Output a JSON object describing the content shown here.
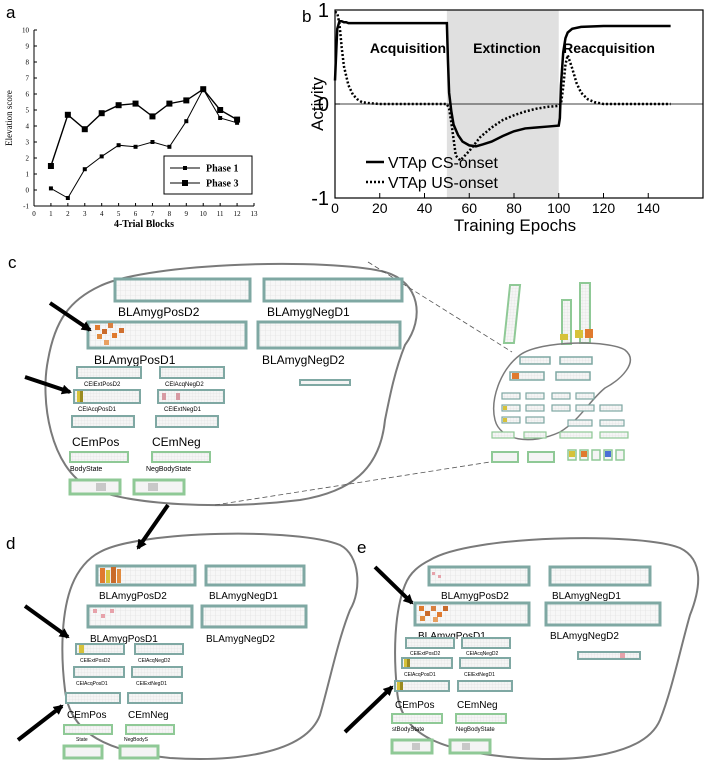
{
  "panels": {
    "a": {
      "letter": "a",
      "chart_data": {
        "type": "line",
        "title": "",
        "xlabel": "4-Trial Blocks",
        "ylabel": "Elevation score",
        "xlim": [
          0,
          13
        ],
        "ylim": [
          -1,
          10
        ],
        "x_ticks": [
          0,
          1,
          2,
          3,
          4,
          5,
          6,
          7,
          8,
          9,
          10,
          11,
          12,
          13
        ],
        "y_ticks": [
          -1,
          0,
          1,
          2,
          3,
          4,
          5,
          6,
          7,
          8,
          9,
          10
        ],
        "grid": false,
        "legend_position": "bottom-right",
        "x": [
          1,
          2,
          3,
          4,
          5,
          6,
          7,
          8,
          9,
          10,
          11,
          12
        ],
        "series": [
          {
            "name": "Phase 1",
            "marker": "small-square",
            "values": [
              0.1,
              -0.5,
              1.3,
              2.1,
              2.8,
              2.7,
              3.0,
              2.7,
              4.3,
              6.3,
              4.5,
              4.2
            ]
          },
          {
            "name": "Phase 3",
            "marker": "large-square",
            "values": [
              1.5,
              4.7,
              3.8,
              4.8,
              5.3,
              5.4,
              4.6,
              5.4,
              5.6,
              6.3,
              5.0,
              4.4
            ]
          }
        ]
      }
    },
    "b": {
      "letter": "b",
      "chart_data": {
        "type": "line",
        "title": "",
        "xlabel": "Training Epochs",
        "ylabel": "Activity",
        "xlim": [
          0,
          150
        ],
        "ylim": [
          -1,
          1
        ],
        "x_ticks": [
          0,
          20,
          40,
          60,
          80,
          100,
          120,
          140
        ],
        "y_ticks": [
          -1,
          0,
          1
        ],
        "grid": false,
        "legend_position": "bottom-left",
        "shaded_region": [
          50,
          100
        ],
        "phase_labels": [
          "Acquisition",
          "Extinction",
          "Reacquisition"
        ],
        "series": [
          {
            "name": "VTAp CS-onset",
            "style": "solid",
            "x": [
              0,
              1,
              2,
              3,
              4,
              5,
              6,
              8,
              10,
              15,
              20,
              30,
              40,
              50,
              50.5,
              51,
              52,
              53,
              55,
              57,
              60,
              63,
              66,
              70,
              75,
              80,
              85,
              90,
              95,
              100,
              100.5,
              101,
              102,
              103,
              104,
              106,
              110,
              120,
              130,
              140,
              150
            ],
            "values": [
              0.25,
              0.8,
              0.88,
              0.88,
              0.87,
              0.87,
              0.86,
              0.86,
              0.86,
              0.86,
              0.86,
              0.86,
              0.86,
              0.86,
              0.45,
              0.12,
              -0.08,
              -0.22,
              -0.33,
              -0.4,
              -0.44,
              -0.45,
              -0.43,
              -0.4,
              -0.34,
              -0.29,
              -0.26,
              -0.25,
              -0.24,
              -0.23,
              -0.15,
              0.2,
              0.55,
              0.7,
              0.76,
              0.8,
              0.82,
              0.83,
              0.83,
              0.83,
              0.83
            ]
          },
          {
            "name": "VTAp US-onset",
            "style": "dotted",
            "x": [
              0,
              1,
              2,
              3,
              4,
              6,
              8,
              10,
              12,
              15,
              20,
              30,
              40,
              50,
              51,
              52,
              54,
              56,
              60,
              65,
              70,
              75,
              80,
              85,
              90,
              95,
              100,
              101,
              102,
              103,
              104,
              106,
              108,
              110,
              113,
              116,
              120,
              130,
              140,
              150
            ],
            "values": [
              0.98,
              0.97,
              0.85,
              0.6,
              0.4,
              0.2,
              0.1,
              0.05,
              0.02,
              0.01,
              0.0,
              0.0,
              0.0,
              0.0,
              -0.05,
              -0.2,
              -0.55,
              -0.6,
              -0.5,
              -0.35,
              -0.25,
              -0.17,
              -0.12,
              -0.08,
              -0.05,
              -0.03,
              -0.02,
              0.0,
              0.18,
              0.42,
              0.52,
              0.38,
              0.22,
              0.12,
              0.05,
              0.02,
              0.0,
              0.0,
              0.0,
              0.0
            ]
          }
        ]
      }
    },
    "c": {
      "letter": "c",
      "labels": {
        "bla_pos_d2": "BLAmygPosD2",
        "bla_neg_d1": "BLAmygNegD1",
        "bla_pos_d1": "BLAmygPosD1",
        "bla_neg_d2": "BLAmygNegD2",
        "cel_ext_pos_d2": "CElExtPosD2",
        "cel_acq_neg_d2": "CElAcqNegD2",
        "cel_acq_pos_d1": "CElAcqPosD1",
        "cel_ext_neg_d1": "CElExtNegD1",
        "cem_pos": "CEmPos",
        "cem_neg": "CEmNeg",
        "body_state": "BodyState",
        "neg_body_state": "NegBodyState"
      }
    },
    "d": {
      "letter": "d",
      "labels": {
        "bla_pos_d2": "BLAmygPosD2",
        "bla_neg_d1": "BLAmygNegD1",
        "bla_pos_d1": "BLAmygPosD1",
        "bla_neg_d2": "BLAmygNegD2",
        "cel_ext_pos_d2": "CElExtPosD2",
        "cel_acq_neg_d2": "CElAcqNegD2",
        "cel_acq_pos_d1": "CElAcqPosD1",
        "cel_ext_neg_d1": "CElExtNegD1",
        "cem_pos": "CEmPos",
        "cem_neg": "CEmNeg",
        "body_state": "State",
        "neg_body_state": "NegBodyS"
      }
    },
    "e": {
      "letter": "e",
      "labels": {
        "bla_pos_d2": "BLAmygPosD2",
        "bla_neg_d1": "BLAmygNegD1",
        "bla_pos_d1": "BLAmygPosD1",
        "bla_neg_d2": "BLAmygNegD2",
        "cel_ext_pos_d2": "CElExtPosD2",
        "cel_acq_neg_d2": "CElAcqNegD2",
        "cel_acq_pos_d1": "CElAcqPosD1",
        "cel_ext_neg_d1": "CElExtNegD1",
        "cem_pos": "CEmPos",
        "cem_neg": "CEmNeg",
        "body_state": "stBodyState",
        "neg_body_state": "NegBodyState"
      }
    }
  },
  "colors": {
    "layer_border": "#7fa8a3",
    "layer_grid": "#e9e9e9",
    "layer_fill": "#f7f7f7",
    "body_border": "#8fc996",
    "shade": "#e0e0e0",
    "active_hot": "#e07a2e",
    "active_warm": "#c9a13a",
    "active_yellow": "#d6c23a",
    "outline": "#7a7a7a"
  }
}
